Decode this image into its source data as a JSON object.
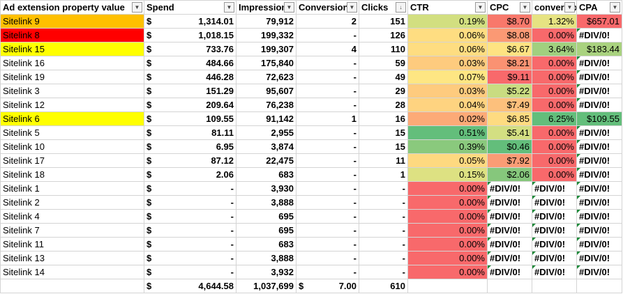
{
  "headers": [
    "Ad extension property value",
    "Spend",
    "Impressions",
    "Conversions",
    "Clicks",
    "CTR",
    "CPC",
    "conversion rate",
    "CPA"
  ],
  "header_icons": [
    "filter-icon",
    "filter-icon",
    "filter-icon",
    "filter-icon",
    "sort-desc-filter-icon",
    "filter-icon",
    "filter-icon",
    "filter-icon",
    "filter-icon"
  ],
  "currency_symbol": "$",
  "rows": [
    {
      "name": "Sitelink 9",
      "name_bg": "#ffc000",
      "spend": "1,314.01",
      "impr": "79,912",
      "conv": "2",
      "clicks": "151",
      "ctr": "0.19%",
      "ctr_bg": "#d2df80",
      "cpc": "$8.70",
      "cpc_bg": "#f8786b",
      "rate": "1.32%",
      "rate_bg": "#e6e382",
      "cpa": "$657.01",
      "cpa_bg": "#f8696b"
    },
    {
      "name": "Sitelink 8",
      "name_bg": "#ff0000",
      "spend": "1,018.15",
      "impr": "199,332",
      "conv": "-",
      "clicks": "126",
      "ctr": "0.06%",
      "ctr_bg": "#fedd81",
      "cpc": "$8.08",
      "cpc_bg": "#fb9974",
      "rate": "0.00%",
      "rate_bg": "#f8696b",
      "cpa": "#DIV/0!",
      "cpa_bg": "#ffffff"
    },
    {
      "name": "Sitelink 15",
      "name_bg": "#ffff00",
      "spend": "733.76",
      "impr": "199,307",
      "conv": "4",
      "clicks": "110",
      "ctr": "0.06%",
      "ctr_bg": "#fedd81",
      "cpc": "$6.67",
      "cpc_bg": "#fee382",
      "rate": "3.64%",
      "rate_bg": "#a1d07f",
      "cpa": "$183.44",
      "cpa_bg": "#a9d27f"
    },
    {
      "name": "Sitelink 16",
      "name_bg": "#ffffff",
      "spend": "484.66",
      "impr": "175,840",
      "conv": "-",
      "clicks": "59",
      "ctr": "0.03%",
      "ctr_bg": "#fecb7e",
      "cpc": "$8.21",
      "cpc_bg": "#fa9272",
      "rate": "0.00%",
      "rate_bg": "#f8696b",
      "cpa": "#DIV/0!",
      "cpa_bg": "#ffffff"
    },
    {
      "name": "Sitelink 19",
      "name_bg": "#ffffff",
      "spend": "446.28",
      "impr": "72,623",
      "conv": "-",
      "clicks": "49",
      "ctr": "0.07%",
      "ctr_bg": "#fee683",
      "cpc": "$9.11",
      "cpc_bg": "#f8696b",
      "rate": "0.00%",
      "rate_bg": "#f8696b",
      "cpa": "#DIV/0!",
      "cpa_bg": "#ffffff"
    },
    {
      "name": "Sitelink 3",
      "name_bg": "#ffffff",
      "spend": "151.29",
      "impr": "95,607",
      "conv": "-",
      "clicks": "29",
      "ctr": "0.03%",
      "ctr_bg": "#fecb7e",
      "cpc": "$5.22",
      "cpc_bg": "#c9dc81",
      "rate": "0.00%",
      "rate_bg": "#f8696b",
      "cpa": "#DIV/0!",
      "cpa_bg": "#ffffff"
    },
    {
      "name": "Sitelink 12",
      "name_bg": "#ffffff",
      "spend": "209.64",
      "impr": "76,238",
      "conv": "-",
      "clicks": "28",
      "ctr": "0.04%",
      "ctr_bg": "#fed380",
      "cpc": "$7.49",
      "cpc_bg": "#fdc07c",
      "rate": "0.00%",
      "rate_bg": "#f8696b",
      "cpa": "#DIV/0!",
      "cpa_bg": "#ffffff"
    },
    {
      "name": "Sitelink 6",
      "name_bg": "#ffff00",
      "spend": "109.55",
      "impr": "91,142",
      "conv": "1",
      "clicks": "16",
      "ctr": "0.02%",
      "ctr_bg": "#fcaa77",
      "cpc": "$6.85",
      "cpc_bg": "#fedb81",
      "rate": "6.25%",
      "rate_bg": "#63be7b",
      "cpa": "$109.55",
      "cpa_bg": "#63be7b"
    },
    {
      "name": "Sitelink 5",
      "name_bg": "#ffffff",
      "spend": "81.11",
      "impr": "2,955",
      "conv": "-",
      "clicks": "15",
      "ctr": "0.51%",
      "ctr_bg": "#63be7b",
      "cpc": "$5.41",
      "cpc_bg": "#d3df82",
      "rate": "0.00%",
      "rate_bg": "#f8696b",
      "cpa": "#DIV/0!",
      "cpa_bg": "#ffffff"
    },
    {
      "name": "Sitelink 10",
      "name_bg": "#ffffff",
      "spend": "6.95",
      "impr": "3,874",
      "conv": "-",
      "clicks": "15",
      "ctr": "0.39%",
      "ctr_bg": "#8ac97d",
      "cpc": "$0.46",
      "cpc_bg": "#63be7b",
      "rate": "0.00%",
      "rate_bg": "#f8696b",
      "cpa": "#DIV/0!",
      "cpa_bg": "#ffffff"
    },
    {
      "name": "Sitelink 17",
      "name_bg": "#ffffff",
      "spend": "87.12",
      "impr": "22,475",
      "conv": "-",
      "clicks": "11",
      "ctr": "0.05%",
      "ctr_bg": "#fed980",
      "cpc": "$7.92",
      "cpc_bg": "#fa9c75",
      "rate": "0.00%",
      "rate_bg": "#f8696b",
      "cpa": "#DIV/0!",
      "cpa_bg": "#ffffff"
    },
    {
      "name": "Sitelink 18",
      "name_bg": "#ffffff",
      "spend": "2.06",
      "impr": "683",
      "conv": "-",
      "clicks": "1",
      "ctr": "0.15%",
      "ctr_bg": "#dde182",
      "cpc": "$2.06",
      "cpc_bg": "#86c77c",
      "rate": "0.00%",
      "rate_bg": "#f8696b",
      "cpa": "#DIV/0!",
      "cpa_bg": "#ffffff"
    },
    {
      "name": "Sitelink 1",
      "name_bg": "#ffffff",
      "spend": "-",
      "impr": "3,930",
      "conv": "-",
      "clicks": "-",
      "ctr": "0.00%",
      "ctr_bg": "#f8696b",
      "cpc": "#DIV/0!",
      "cpc_bg": "#ffffff",
      "rate": "#DIV/0!",
      "rate_bg": "#ffffff",
      "cpa": "#DIV/0!",
      "cpa_bg": "#ffffff"
    },
    {
      "name": "Sitelink 2",
      "name_bg": "#ffffff",
      "spend": "-",
      "impr": "3,888",
      "conv": "-",
      "clicks": "-",
      "ctr": "0.00%",
      "ctr_bg": "#f8696b",
      "cpc": "#DIV/0!",
      "cpc_bg": "#ffffff",
      "rate": "#DIV/0!",
      "rate_bg": "#ffffff",
      "cpa": "#DIV/0!",
      "cpa_bg": "#ffffff"
    },
    {
      "name": "Sitelink 4",
      "name_bg": "#ffffff",
      "spend": "-",
      "impr": "695",
      "conv": "-",
      "clicks": "-",
      "ctr": "0.00%",
      "ctr_bg": "#f8696b",
      "cpc": "#DIV/0!",
      "cpc_bg": "#ffffff",
      "rate": "#DIV/0!",
      "rate_bg": "#ffffff",
      "cpa": "#DIV/0!",
      "cpa_bg": "#ffffff"
    },
    {
      "name": "Sitelink 7",
      "name_bg": "#ffffff",
      "spend": "-",
      "impr": "695",
      "conv": "-",
      "clicks": "-",
      "ctr": "0.00%",
      "ctr_bg": "#f8696b",
      "cpc": "#DIV/0!",
      "cpc_bg": "#ffffff",
      "rate": "#DIV/0!",
      "rate_bg": "#ffffff",
      "cpa": "#DIV/0!",
      "cpa_bg": "#ffffff"
    },
    {
      "name": "Sitelink 11",
      "name_bg": "#ffffff",
      "spend": "-",
      "impr": "683",
      "conv": "-",
      "clicks": "-",
      "ctr": "0.00%",
      "ctr_bg": "#f8696b",
      "cpc": "#DIV/0!",
      "cpc_bg": "#ffffff",
      "rate": "#DIV/0!",
      "rate_bg": "#ffffff",
      "cpa": "#DIV/0!",
      "cpa_bg": "#ffffff"
    },
    {
      "name": "Sitelink 13",
      "name_bg": "#ffffff",
      "spend": "-",
      "impr": "3,888",
      "conv": "-",
      "clicks": "-",
      "ctr": "0.00%",
      "ctr_bg": "#f8696b",
      "cpc": "#DIV/0!",
      "cpc_bg": "#ffffff",
      "rate": "#DIV/0!",
      "rate_bg": "#ffffff",
      "cpa": "#DIV/0!",
      "cpa_bg": "#ffffff"
    },
    {
      "name": "Sitelink 14",
      "name_bg": "#ffffff",
      "spend": "-",
      "impr": "3,932",
      "conv": "-",
      "clicks": "-",
      "ctr": "0.00%",
      "ctr_bg": "#f8696b",
      "cpc": "#DIV/0!",
      "cpc_bg": "#ffffff",
      "rate": "#DIV/0!",
      "rate_bg": "#ffffff",
      "cpa": "#DIV/0!",
      "cpa_bg": "#ffffff"
    }
  ],
  "totals": {
    "name": "",
    "spend": "4,644.58",
    "impr": "1,037,699",
    "conv": "7.00",
    "clicks": "610"
  }
}
